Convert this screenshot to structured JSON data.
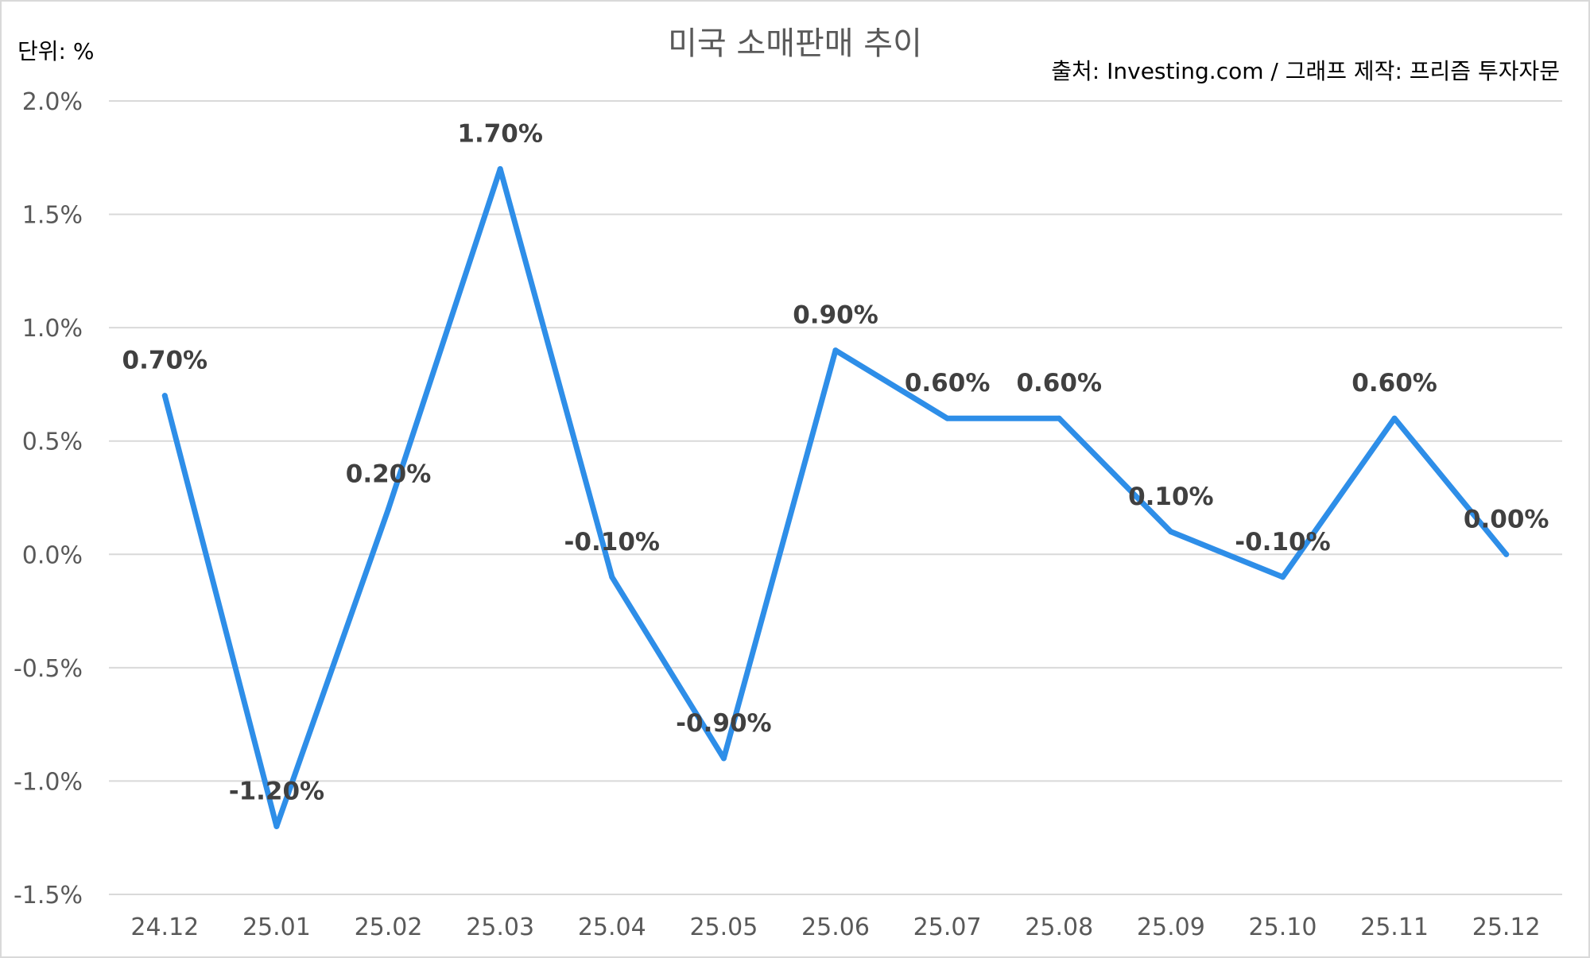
{
  "chart_data": {
    "type": "line",
    "title": "미국 소매판매 추이",
    "unit_label": "단위: %",
    "source_label": "출처: Investing.com / 그래프 제작: 프리즘 투자자문",
    "categories": [
      "24.12",
      "25.01",
      "25.02",
      "25.03",
      "25.04",
      "25.05",
      "25.06",
      "25.07",
      "25.08",
      "25.09",
      "25.10",
      "25.11",
      "25.12"
    ],
    "series": [
      {
        "values": [
          0.7,
          -1.2,
          0.2,
          1.7,
          -0.1,
          -0.9,
          0.9,
          0.6,
          0.6,
          0.1,
          -0.1,
          0.6,
          0.0
        ],
        "color": "#2e8ee8"
      }
    ],
    "data_labels": [
      "0.70%",
      "-1.20%",
      "0.20%",
      "1.70%",
      "-0.10%",
      "-0.90%",
      "0.90%",
      "0.60%",
      "0.60%",
      "0.10%",
      "-0.10%",
      "0.60%",
      "0.00%"
    ],
    "ylim": [
      -1.5,
      2.0
    ],
    "yticks": [
      2.0,
      1.5,
      1.0,
      0.5,
      0.0,
      -0.5,
      -1.0,
      -1.5
    ],
    "ytick_labels": [
      "2.0%",
      "1.5%",
      "1.0%",
      "0.5%",
      "0.0%",
      "-0.5%",
      "-1.0%",
      "-1.5%"
    ],
    "grid": true,
    "legend": "none"
  }
}
